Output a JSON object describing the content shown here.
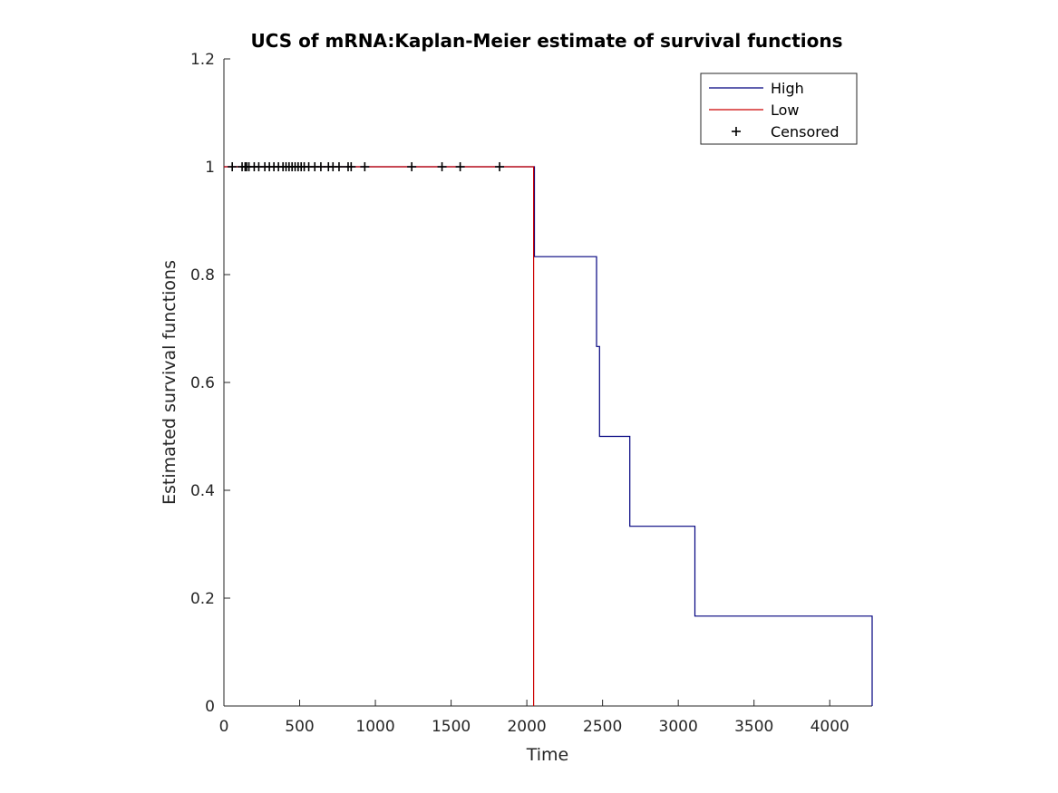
{
  "chart_data": {
    "type": "line",
    "title": "UCS of mRNA:Kaplan-Meier estimate of survival functions",
    "xlabel": "Time",
    "ylabel": "Estimated survival functions",
    "xlim": [
      0,
      4280
    ],
    "ylim": [
      0,
      1.2
    ],
    "xticks": [
      0,
      500,
      1000,
      1500,
      2000,
      2500,
      3000,
      3500,
      4000
    ],
    "yticks": [
      0,
      0.2,
      0.4,
      0.6,
      0.8,
      1,
      1.2
    ],
    "xtick_labels": [
      "0",
      "500",
      "1000",
      "1500",
      "2000",
      "2500",
      "3000",
      "3500",
      "4000"
    ],
    "ytick_labels": [
      "0",
      "0.2",
      "0.4",
      "0.6",
      "0.8",
      "1",
      "1.2"
    ],
    "grid": false,
    "legend_position": "top-right",
    "series": [
      {
        "name": "High",
        "color": "#00007f",
        "x": [
          0,
          2050,
          2050,
          2460,
          2460,
          2480,
          2480,
          2680,
          2680,
          3110,
          3110,
          4280,
          4280
        ],
        "y": [
          1,
          1,
          0.8333,
          0.8333,
          0.6667,
          0.6667,
          0.5,
          0.5,
          0.3333,
          0.3333,
          0.1667,
          0.1667,
          0
        ]
      },
      {
        "name": "Low",
        "color": "#cc0000",
        "x": [
          0,
          2045,
          2045
        ],
        "y": [
          1,
          1,
          0
        ]
      }
    ],
    "censored": {
      "name": "Censored",
      "color": "#000000",
      "x": [
        55,
        120,
        140,
        150,
        165,
        200,
        230,
        270,
        300,
        330,
        360,
        390,
        410,
        430,
        450,
        470,
        490,
        510,
        530,
        560,
        600,
        640,
        690,
        720,
        760,
        820,
        840,
        930,
        1240,
        1440,
        1560,
        1820
      ],
      "y": 1
    }
  }
}
